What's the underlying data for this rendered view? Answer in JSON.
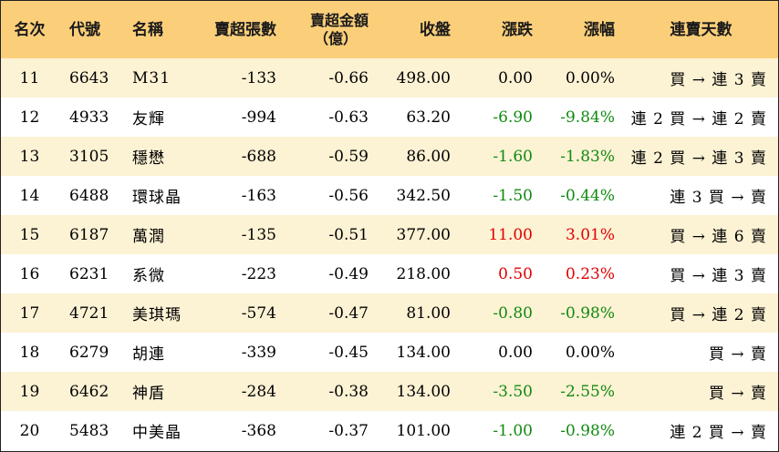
{
  "headers": {
    "rank": "名次",
    "code": "代號",
    "name": "名稱",
    "net_sell_lots": "賣超張數",
    "net_sell_amount": "賣超金額",
    "net_sell_amount_unit": "（億）",
    "close": "收盤",
    "change": "漲跌",
    "change_pct": "漲幅",
    "streak": "連賣天數"
  },
  "colors": {
    "header_bg": "#fbcf7a",
    "row_alt_bg": "#fcf2d4",
    "up": "#e00000",
    "down": "#108a10"
  },
  "rows": [
    {
      "rank": "11",
      "code": "6643",
      "name": "M31",
      "lots": "-133",
      "amount": "-0.66",
      "close": "498.00",
      "change": "0.00",
      "pct": "0.00%",
      "dir": "flat",
      "streak": "買 → 連 3 賣"
    },
    {
      "rank": "12",
      "code": "4933",
      "name": "友輝",
      "lots": "-994",
      "amount": "-0.63",
      "close": "63.20",
      "change": "-6.90",
      "pct": "-9.84%",
      "dir": "neg",
      "streak": "連 2 買 → 連 2 賣"
    },
    {
      "rank": "13",
      "code": "3105",
      "name": "穩懋",
      "lots": "-688",
      "amount": "-0.59",
      "close": "86.00",
      "change": "-1.60",
      "pct": "-1.83%",
      "dir": "neg",
      "streak": "連 2 買 → 連 3 賣"
    },
    {
      "rank": "14",
      "code": "6488",
      "name": "環球晶",
      "lots": "-163",
      "amount": "-0.56",
      "close": "342.50",
      "change": "-1.50",
      "pct": "-0.44%",
      "dir": "neg",
      "streak": "連 3 買 → 賣"
    },
    {
      "rank": "15",
      "code": "6187",
      "name": "萬潤",
      "lots": "-135",
      "amount": "-0.51",
      "close": "377.00",
      "change": "11.00",
      "pct": "3.01%",
      "dir": "pos",
      "streak": "買 → 連 6 賣"
    },
    {
      "rank": "16",
      "code": "6231",
      "name": "系微",
      "lots": "-223",
      "amount": "-0.49",
      "close": "218.00",
      "change": "0.50",
      "pct": "0.23%",
      "dir": "pos",
      "streak": "買 → 連 3 賣"
    },
    {
      "rank": "17",
      "code": "4721",
      "name": "美琪瑪",
      "lots": "-574",
      "amount": "-0.47",
      "close": "81.00",
      "change": "-0.80",
      "pct": "-0.98%",
      "dir": "neg",
      "streak": "買 → 連 2 賣"
    },
    {
      "rank": "18",
      "code": "6279",
      "name": "胡連",
      "lots": "-339",
      "amount": "-0.45",
      "close": "134.00",
      "change": "0.00",
      "pct": "0.00%",
      "dir": "flat",
      "streak": "買 → 賣"
    },
    {
      "rank": "19",
      "code": "6462",
      "name": "神盾",
      "lots": "-284",
      "amount": "-0.38",
      "close": "134.00",
      "change": "-3.50",
      "pct": "-2.55%",
      "dir": "neg",
      "streak": "買 → 賣"
    },
    {
      "rank": "20",
      "code": "5483",
      "name": "中美晶",
      "lots": "-368",
      "amount": "-0.37",
      "close": "101.00",
      "change": "-1.00",
      "pct": "-0.98%",
      "dir": "neg",
      "streak": "連 2 買 → 賣"
    }
  ]
}
